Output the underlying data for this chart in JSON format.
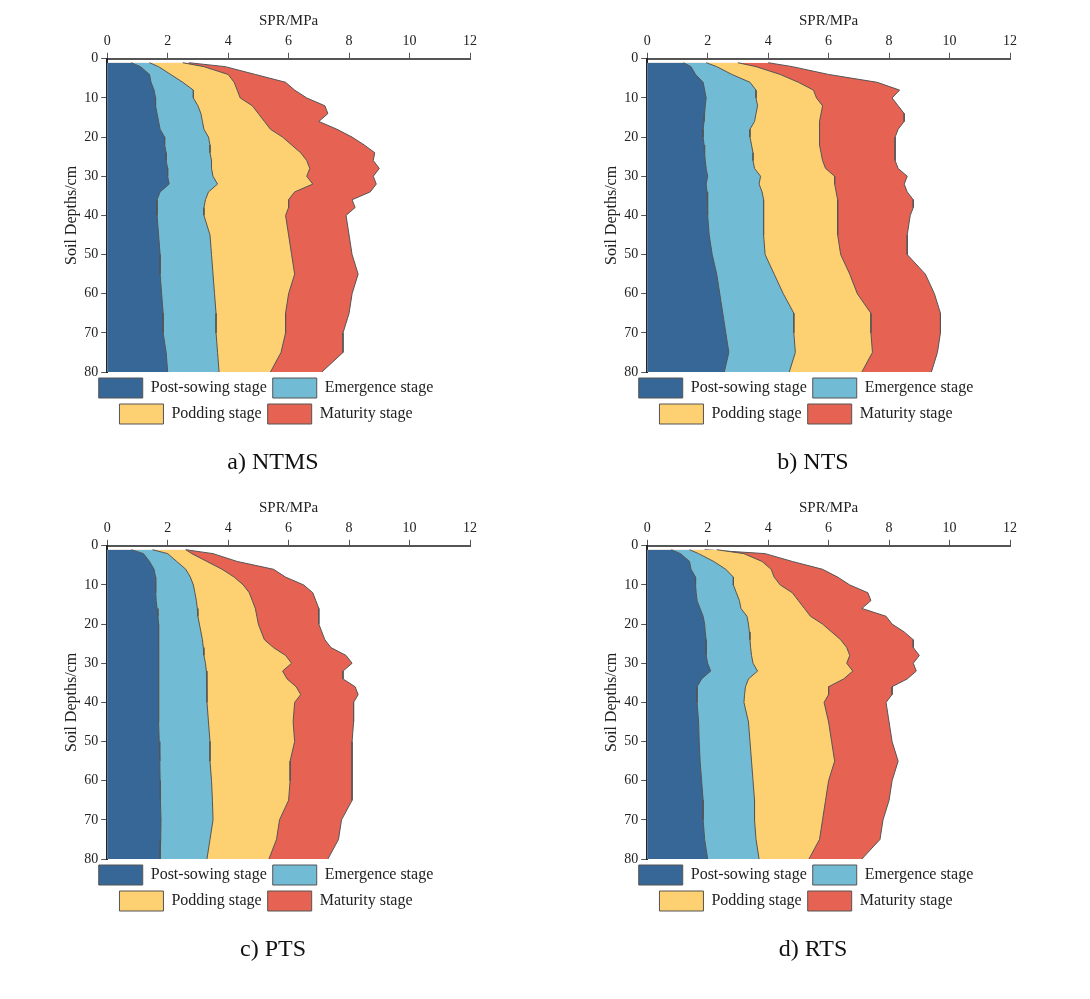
{
  "chart_data": [
    {
      "type": "area",
      "orientation": "horizontal",
      "title": "a) NTMS",
      "xlabel": "SPR/MPa",
      "ylabel": "Soil Depths/cm",
      "legend": "bottom",
      "grid": false,
      "xlim": [
        0,
        12
      ],
      "xticks": [
        0,
        2,
        4,
        6,
        8,
        10,
        12
      ],
      "ylim": [
        80,
        0
      ],
      "yticks": [
        0,
        10,
        20,
        30,
        40,
        50,
        60,
        70,
        80
      ],
      "x": [
        1,
        2,
        4,
        6,
        8,
        10,
        12,
        14,
        16,
        18,
        20,
        22,
        24,
        26,
        28,
        30,
        32,
        34,
        36,
        38,
        40,
        45,
        50,
        55,
        60,
        65,
        70,
        75,
        80
      ],
      "series": [
        {
          "name": "Post-sowing stage",
          "color": "#376796",
          "values": [
            0.8,
            1.1,
            1.4,
            1.45,
            1.55,
            1.6,
            1.6,
            1.65,
            1.7,
            1.75,
            1.9,
            1.9,
            1.95,
            1.95,
            2.0,
            2.0,
            2.05,
            1.75,
            1.65,
            1.65,
            1.65,
            1.7,
            1.75,
            1.75,
            1.8,
            1.85,
            1.85,
            1.95,
            2.0
          ]
        },
        {
          "name": "Emergence stage",
          "color": "#72bbd5",
          "values": [
            1.4,
            1.7,
            2.1,
            2.5,
            2.85,
            2.85,
            3.0,
            3.1,
            3.15,
            3.2,
            3.35,
            3.4,
            3.4,
            3.45,
            3.45,
            3.5,
            3.65,
            3.35,
            3.25,
            3.2,
            3.2,
            3.4,
            3.45,
            3.5,
            3.55,
            3.6,
            3.6,
            3.65,
            3.7
          ]
        },
        {
          "name": "Podding stage",
          "color": "#fdd071",
          "values": [
            2.5,
            3.2,
            4.0,
            4.2,
            4.3,
            4.4,
            4.8,
            5.0,
            5.2,
            5.4,
            5.8,
            6.1,
            6.4,
            6.6,
            6.7,
            6.6,
            6.8,
            6.2,
            6.0,
            6.0,
            5.9,
            6.0,
            6.1,
            6.2,
            6.0,
            5.9,
            5.9,
            5.75,
            5.4
          ]
        },
        {
          "name": "Maturity stage",
          "color": "#e66253",
          "values": [
            2.7,
            3.9,
            4.9,
            5.9,
            6.2,
            6.6,
            7.2,
            7.3,
            7.0,
            7.6,
            8.1,
            8.5,
            8.85,
            8.8,
            9.0,
            8.8,
            8.9,
            8.7,
            8.1,
            8.2,
            7.9,
            8.0,
            8.1,
            8.3,
            8.1,
            8.0,
            7.8,
            7.8,
            7.1
          ]
        }
      ]
    },
    {
      "type": "area",
      "orientation": "horizontal",
      "title": "b) NTS",
      "xlabel": "SPR/MPa",
      "ylabel": "Soil Depths/cm",
      "legend": "bottom",
      "grid": false,
      "xlim": [
        0,
        12
      ],
      "xticks": [
        0,
        2,
        4,
        6,
        8,
        10,
        12
      ],
      "ylim": [
        80,
        0
      ],
      "yticks": [
        0,
        10,
        20,
        30,
        40,
        50,
        60,
        70,
        80
      ],
      "x": [
        1,
        2,
        4,
        6,
        8,
        10,
        12,
        14,
        16,
        18,
        20,
        22,
        24,
        26,
        28,
        30,
        32,
        34,
        36,
        38,
        40,
        45,
        50,
        55,
        60,
        65,
        70,
        75,
        80
      ],
      "series": [
        {
          "name": "Post-sowing stage",
          "color": "#376796",
          "values": [
            1.2,
            1.45,
            1.6,
            1.85,
            1.9,
            1.95,
            1.92,
            1.9,
            1.88,
            1.85,
            1.85,
            1.88,
            1.9,
            1.92,
            1.95,
            2.0,
            1.95,
            1.98,
            2.0,
            2.0,
            2.0,
            2.05,
            2.15,
            2.3,
            2.4,
            2.5,
            2.6,
            2.7,
            2.55
          ]
        },
        {
          "name": "Emergence stage",
          "color": "#72bbd5",
          "values": [
            1.95,
            2.3,
            2.8,
            3.4,
            3.6,
            3.6,
            3.65,
            3.6,
            3.55,
            3.4,
            3.4,
            3.45,
            3.5,
            3.5,
            3.55,
            3.75,
            3.7,
            3.8,
            3.85,
            3.85,
            3.85,
            3.85,
            3.9,
            4.2,
            4.5,
            4.85,
            4.85,
            4.9,
            4.7
          ]
        },
        {
          "name": "Podding stage",
          "color": "#fdd071",
          "values": [
            3.0,
            3.6,
            4.4,
            5.0,
            5.5,
            5.6,
            5.8,
            5.75,
            5.7,
            5.7,
            5.7,
            5.7,
            5.75,
            5.8,
            5.9,
            6.2,
            6.2,
            6.25,
            6.3,
            6.3,
            6.3,
            6.3,
            6.4,
            6.7,
            6.95,
            7.4,
            7.4,
            7.45,
            7.1
          ]
        },
        {
          "name": "Maturity stage",
          "color": "#e66253",
          "values": [
            4.0,
            4.8,
            6.0,
            7.6,
            8.35,
            8.1,
            8.3,
            8.5,
            8.5,
            8.3,
            8.2,
            8.2,
            8.2,
            8.2,
            8.3,
            8.6,
            8.5,
            8.6,
            8.8,
            8.8,
            8.7,
            8.6,
            8.6,
            9.2,
            9.5,
            9.7,
            9.7,
            9.6,
            9.4
          ]
        }
      ]
    },
    {
      "type": "area",
      "orientation": "horizontal",
      "title": "c) PTS",
      "xlabel": "SPR/MPa",
      "ylabel": "Soil Depths/cm",
      "legend": "bottom",
      "grid": false,
      "xlim": [
        0,
        12
      ],
      "xticks": [
        0,
        2,
        4,
        6,
        8,
        10,
        12
      ],
      "ylim": [
        80,
        0
      ],
      "yticks": [
        0,
        10,
        20,
        30,
        40,
        50,
        60,
        70,
        80
      ],
      "x": [
        1,
        2,
        4,
        6,
        8,
        10,
        12,
        14,
        16,
        18,
        20,
        22,
        24,
        26,
        28,
        30,
        32,
        34,
        36,
        38,
        40,
        45,
        50,
        55,
        60,
        65,
        70,
        75,
        80
      ],
      "series": [
        {
          "name": "Post-sowing stage",
          "color": "#376796",
          "values": [
            0.8,
            1.2,
            1.4,
            1.55,
            1.6,
            1.6,
            1.61,
            1.62,
            1.65,
            1.68,
            1.7,
            1.7,
            1.7,
            1.7,
            1.7,
            1.7,
            1.7,
            1.7,
            1.7,
            1.7,
            1.7,
            1.71,
            1.72,
            1.74,
            1.75,
            1.76,
            1.78,
            1.77,
            1.75
          ]
        },
        {
          "name": "Emergence stage",
          "color": "#72bbd5",
          "values": [
            1.5,
            2.0,
            2.3,
            2.6,
            2.75,
            2.85,
            2.9,
            2.95,
            2.98,
            3.0,
            3.05,
            3.1,
            3.15,
            3.18,
            3.2,
            3.25,
            3.28,
            3.3,
            3.3,
            3.3,
            3.3,
            3.35,
            3.4,
            3.4,
            3.45,
            3.48,
            3.5,
            3.4,
            3.3
          ]
        },
        {
          "name": "Podding stage",
          "color": "#fdd071",
          "values": [
            2.6,
            2.8,
            3.3,
            3.8,
            4.2,
            4.5,
            4.7,
            4.8,
            4.9,
            4.95,
            5.0,
            5.1,
            5.2,
            5.5,
            5.9,
            6.1,
            5.8,
            5.95,
            6.25,
            6.4,
            6.2,
            6.15,
            6.2,
            6.05,
            6.05,
            6.0,
            5.7,
            5.6,
            5.35
          ]
        },
        {
          "name": "Maturity stage",
          "color": "#e66253",
          "values": [
            2.6,
            3.5,
            4.3,
            5.5,
            5.9,
            6.5,
            6.8,
            6.9,
            7.0,
            7.0,
            7.0,
            7.1,
            7.2,
            7.4,
            7.9,
            8.1,
            7.8,
            7.8,
            8.2,
            8.3,
            8.15,
            8.15,
            8.1,
            8.1,
            8.1,
            8.1,
            7.75,
            7.65,
            7.3
          ]
        }
      ]
    },
    {
      "type": "area",
      "orientation": "horizontal",
      "title": "d) RTS",
      "xlabel": "SPR/MPa",
      "ylabel": "Soil Depths/cm",
      "legend": "bottom",
      "grid": false,
      "xlim": [
        0,
        12
      ],
      "xticks": [
        0,
        2,
        4,
        6,
        8,
        10,
        12
      ],
      "ylim": [
        80,
        0
      ],
      "yticks": [
        0,
        10,
        20,
        30,
        40,
        50,
        60,
        70,
        80
      ],
      "x": [
        1,
        2,
        4,
        6,
        8,
        10,
        12,
        14,
        16,
        18,
        20,
        22,
        24,
        26,
        28,
        30,
        32,
        34,
        36,
        38,
        40,
        45,
        50,
        55,
        60,
        65,
        70,
        75,
        80
      ],
      "series": [
        {
          "name": "Post-sowing stage",
          "color": "#376796",
          "values": [
            0.8,
            1.1,
            1.4,
            1.45,
            1.6,
            1.6,
            1.62,
            1.65,
            1.75,
            1.85,
            1.9,
            1.92,
            1.95,
            1.95,
            1.95,
            2.0,
            2.1,
            1.8,
            1.65,
            1.65,
            1.65,
            1.7,
            1.72,
            1.75,
            1.8,
            1.85,
            1.85,
            1.9,
            2.0
          ]
        },
        {
          "name": "Emergence stage",
          "color": "#72bbd5",
          "values": [
            1.4,
            1.7,
            2.2,
            2.6,
            2.85,
            2.85,
            2.95,
            3.05,
            3.1,
            3.3,
            3.35,
            3.38,
            3.4,
            3.42,
            3.45,
            3.5,
            3.65,
            3.35,
            3.25,
            3.22,
            3.2,
            3.35,
            3.4,
            3.45,
            3.5,
            3.55,
            3.55,
            3.6,
            3.7
          ]
        },
        {
          "name": "Podding stage",
          "color": "#fdd071",
          "values": [
            2.3,
            3.2,
            3.8,
            4.1,
            4.2,
            4.4,
            4.8,
            5.0,
            5.2,
            5.4,
            5.8,
            6.1,
            6.4,
            6.6,
            6.7,
            6.6,
            6.8,
            6.5,
            6.0,
            6.0,
            5.85,
            6.0,
            6.1,
            6.2,
            6.0,
            5.9,
            5.8,
            5.7,
            5.35
          ]
        },
        {
          "name": "Maturity stage",
          "color": "#e66253",
          "values": [
            1.9,
            3.9,
            4.8,
            5.8,
            6.3,
            6.7,
            7.3,
            7.4,
            7.1,
            7.9,
            8.1,
            8.5,
            8.8,
            8.8,
            9.0,
            8.8,
            8.9,
            8.6,
            8.1,
            8.1,
            7.9,
            8.0,
            8.1,
            8.3,
            8.1,
            8.0,
            7.8,
            7.7,
            7.1
          ]
        }
      ]
    }
  ]
}
